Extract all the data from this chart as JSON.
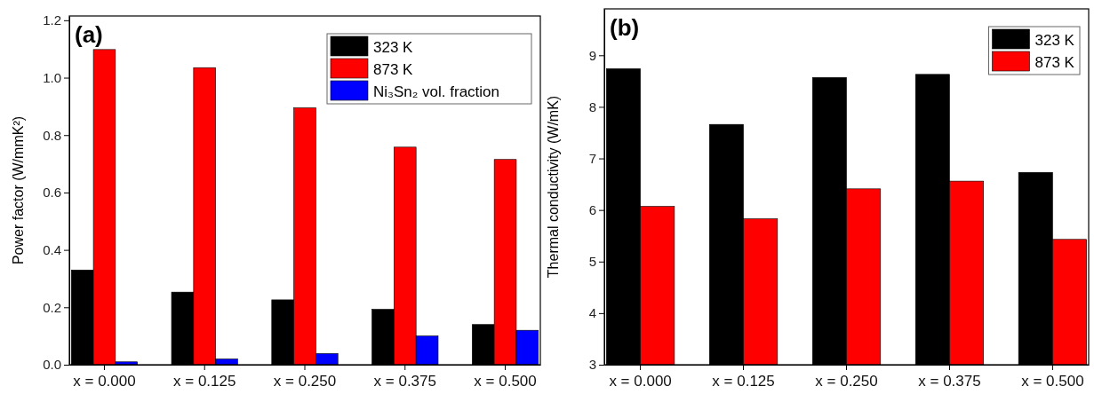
{
  "chart_data": [
    {
      "type": "bar",
      "title": "(a)",
      "ylabel": "Power factor (W/mmK²)",
      "categories": [
        "x = 0.000",
        "x = 0.125",
        "x = 0.250",
        "x = 0.375",
        "x = 0.500"
      ],
      "ylim": [
        0,
        1.215
      ],
      "yticks": [
        {
          "value": 0,
          "label": "0.0"
        },
        {
          "value": 0.2,
          "label": "0.2"
        },
        {
          "value": 0.4,
          "label": "0.4"
        },
        {
          "value": 0.6,
          "label": "0.6"
        },
        {
          "value": 0.8,
          "label": "0.8"
        },
        {
          "value": 1.0,
          "label": "1.0"
        },
        {
          "value": 1.2,
          "label": "1.2"
        }
      ],
      "legend": "top right",
      "series": [
        {
          "name": "323 K",
          "color": "#000000",
          "values": [
            0.33,
            0.253,
            0.226,
            0.193,
            0.14
          ]
        },
        {
          "name": "873 K",
          "color": "#ff0000",
          "values": [
            1.098,
            1.035,
            0.895,
            0.758,
            0.715
          ]
        },
        {
          "name": "Ni₃Sn₂ vol. fraction",
          "color": "#0000ff",
          "values": [
            0.01,
            0.02,
            0.039,
            0.1,
            0.12
          ]
        }
      ]
    },
    {
      "type": "bar",
      "title": "(b)",
      "ylabel": "Thermal conductivity (W/mK)",
      "categories": [
        "x = 0.000",
        "x = 0.125",
        "x = 0.250",
        "x = 0.375",
        "x = 0.500"
      ],
      "ylim": [
        3,
        9.9
      ],
      "yticks": [
        3,
        4,
        5,
        6,
        7,
        8,
        9
      ],
      "legend": "top right",
      "series": [
        {
          "name": "323 K",
          "color": "#000000",
          "values": [
            8.74,
            7.66,
            8.57,
            8.63,
            6.73
          ]
        },
        {
          "name": "873 K",
          "color": "#ff0000",
          "values": [
            6.07,
            5.83,
            6.41,
            6.56,
            5.43
          ]
        }
      ]
    }
  ]
}
